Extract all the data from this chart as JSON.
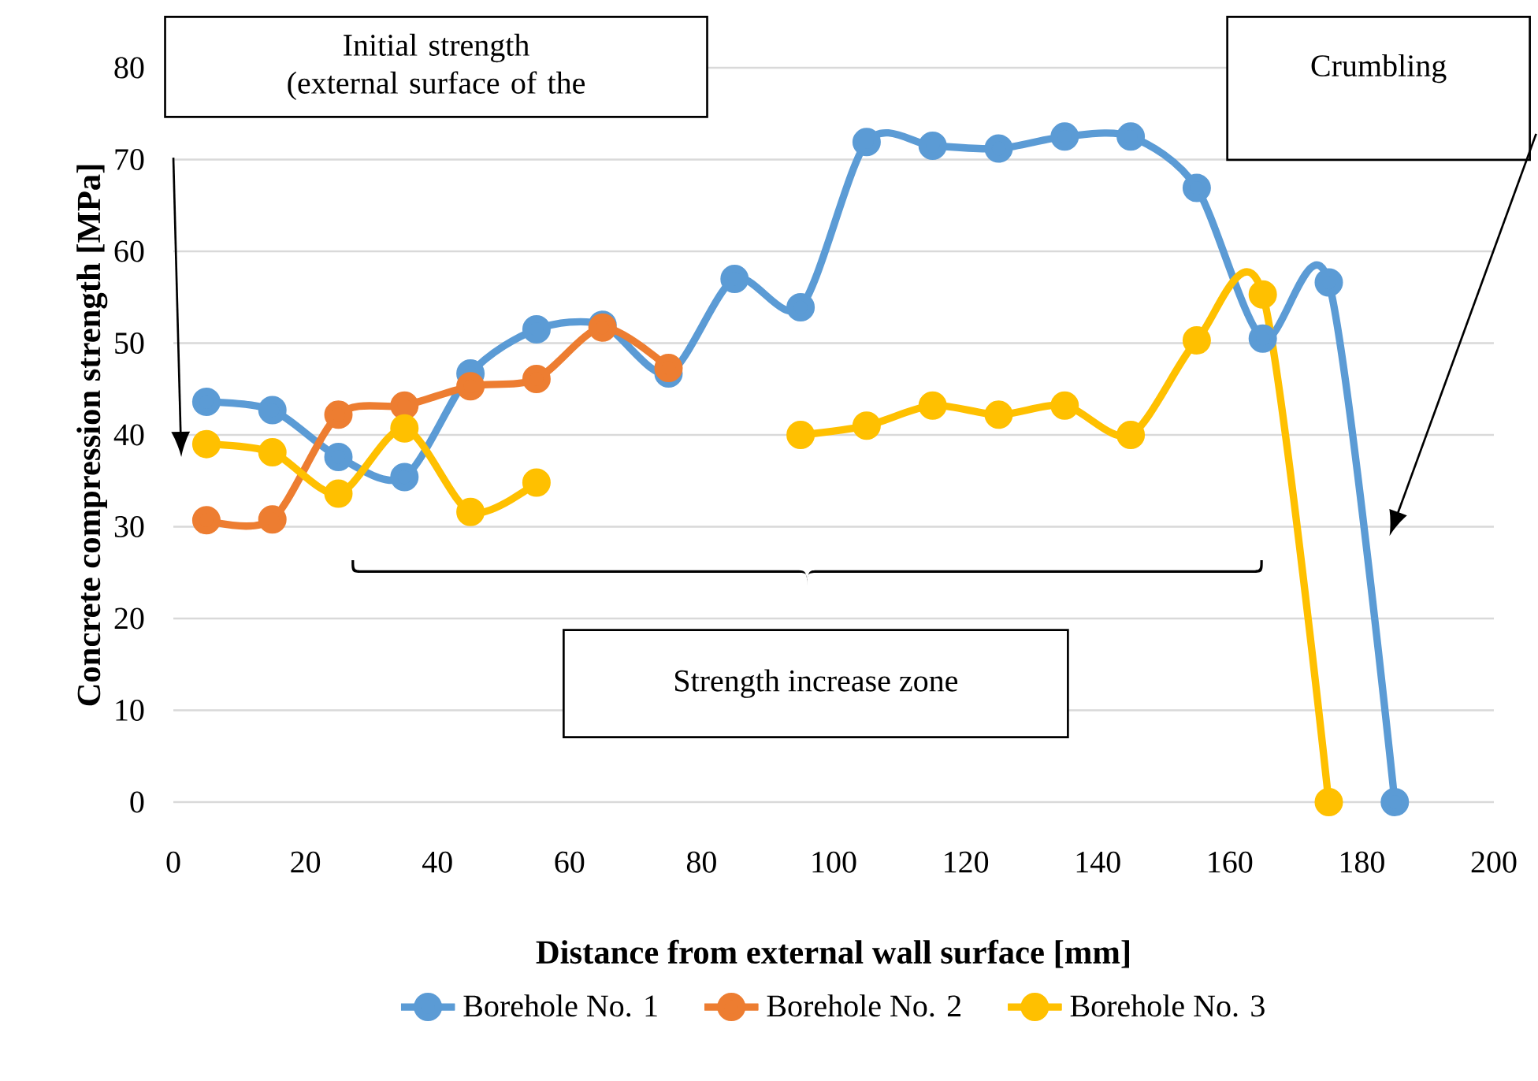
{
  "chart_data": {
    "type": "line",
    "xlabel": "Distance from external wall surface [mm]",
    "ylabel": "Concrete compression strength [MPa]",
    "x": [
      5,
      15,
      25,
      35,
      45,
      55,
      65,
      75,
      85,
      95,
      105,
      115,
      125,
      135,
      145,
      155,
      165,
      175,
      185
    ],
    "series": [
      {
        "name": "Borehole No. 1",
        "color": "#5b9bd5",
        "values": [
          43.6,
          42.7,
          37.6,
          35.4,
          46.7,
          51.5,
          52.0,
          46.7,
          57.0,
          53.9,
          71.9,
          71.5,
          71.2,
          72.5,
          72.5,
          66.9,
          50.5,
          56.6,
          0
        ]
      },
      {
        "name": "Borehole No. 2",
        "color": "#ed7d31",
        "values": [
          30.7,
          30.8,
          42.2,
          43.2,
          45.3,
          46.1,
          51.7,
          47.3,
          null,
          null,
          null,
          null,
          null,
          null,
          null,
          null,
          null,
          null,
          null
        ]
      },
      {
        "name": "Borehole No. 3",
        "color": "#ffc000",
        "values": [
          39.0,
          38.1,
          33.6,
          40.7,
          31.6,
          34.8,
          null,
          null,
          null,
          40.0,
          41.0,
          43.2,
          42.2,
          43.2,
          40.0,
          50.3,
          55.3,
          0,
          null
        ]
      }
    ],
    "xlim": [
      0,
      200
    ],
    "xticks": [
      0,
      20,
      40,
      60,
      80,
      100,
      120,
      140,
      160,
      180,
      200
    ],
    "ylim": [
      0,
      80
    ],
    "yticks": [
      0,
      10,
      20,
      30,
      40,
      50,
      60,
      70,
      80
    ],
    "grid": "y",
    "legend": "bottom",
    "marker": "circle",
    "line_style": "solid",
    "annotations": [
      "Initial strength (external surface of the",
      "Crumbling",
      "Strength increase zone"
    ]
  }
}
